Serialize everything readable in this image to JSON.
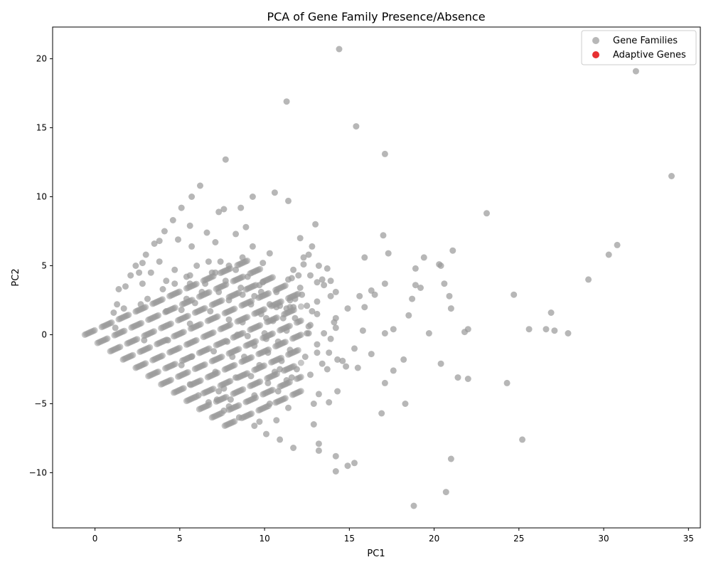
{
  "chart_data": {
    "type": "scatter",
    "title": "PCA of Gene Family Presence/Absence",
    "xlabel": "PC1",
    "ylabel": "PC2",
    "xlim": [
      -2.5,
      35.7
    ],
    "ylim": [
      -14.0,
      22.3
    ],
    "xticks": [
      0,
      5,
      10,
      15,
      20,
      25,
      30,
      35
    ],
    "yticks": [
      -10,
      -5,
      0,
      5,
      10,
      15,
      20
    ],
    "grid": false,
    "legend": {
      "position": "top-right",
      "entries": [
        {
          "label": "Gene Families",
          "color": "#999999"
        },
        {
          "label": "Adaptive Genes",
          "color": "#e41a1c"
        }
      ]
    },
    "series": [
      {
        "name": "Gene Families",
        "color": "#999999",
        "points": [
          [
            14.4,
            20.7
          ],
          [
            31.9,
            19.1
          ],
          [
            11.3,
            16.9
          ],
          [
            15.4,
            15.1
          ],
          [
            17.1,
            13.1
          ],
          [
            7.7,
            12.7
          ],
          [
            34.0,
            11.5
          ],
          [
            6.2,
            10.8
          ],
          [
            10.6,
            10.3
          ],
          [
            5.7,
            10.0
          ],
          [
            9.3,
            10.0
          ],
          [
            11.4,
            9.7
          ],
          [
            5.1,
            9.2
          ],
          [
            7.6,
            9.1
          ],
          [
            8.6,
            9.2
          ],
          [
            7.3,
            8.9
          ],
          [
            23.1,
            8.8
          ],
          [
            4.6,
            8.3
          ],
          [
            13.0,
            8.0
          ],
          [
            5.6,
            7.9
          ],
          [
            8.9,
            7.8
          ],
          [
            4.1,
            7.5
          ],
          [
            6.6,
            7.4
          ],
          [
            8.3,
            7.3
          ],
          [
            17.0,
            7.2
          ],
          [
            12.1,
            7.0
          ],
          [
            3.8,
            6.8
          ],
          [
            4.9,
            6.9
          ],
          [
            7.1,
            6.7
          ],
          [
            30.8,
            6.5
          ],
          [
            3.5,
            6.6
          ],
          [
            21.1,
            6.1
          ],
          [
            5.7,
            6.4
          ],
          [
            9.3,
            6.4
          ],
          [
            12.8,
            6.4
          ],
          [
            10.3,
            5.9
          ],
          [
            17.3,
            5.9
          ],
          [
            30.3,
            5.8
          ],
          [
            3.0,
            5.8
          ],
          [
            12.6,
            5.8
          ],
          [
            8.7,
            5.6
          ],
          [
            15.9,
            5.6
          ],
          [
            19.4,
            5.6
          ],
          [
            12.3,
            5.6
          ],
          [
            7.4,
            5.3
          ],
          [
            3.8,
            5.3
          ],
          [
            2.8,
            5.2
          ],
          [
            6.0,
            5.0
          ],
          [
            6.7,
            5.3
          ],
          [
            9.9,
            5.2
          ],
          [
            13.2,
            5.0
          ],
          [
            20.3,
            5.1
          ],
          [
            20.4,
            5.0
          ],
          [
            12.3,
            5.1
          ],
          [
            7.9,
            5.0
          ],
          [
            2.4,
            5.0
          ],
          [
            11.7,
            4.7
          ],
          [
            18.9,
            4.8
          ],
          [
            13.7,
            4.8
          ],
          [
            8.3,
            4.7
          ],
          [
            3.3,
            4.5
          ],
          [
            4.7,
            4.7
          ],
          [
            2.6,
            4.5
          ],
          [
            6.9,
            4.5
          ],
          [
            7.1,
            4.5
          ],
          [
            12.0,
            4.3
          ],
          [
            12.7,
            4.3
          ],
          [
            2.1,
            4.3
          ],
          [
            5.6,
            4.3
          ],
          [
            5.4,
            4.2
          ],
          [
            9.0,
            4.2
          ],
          [
            11.4,
            4.0
          ],
          [
            11.6,
            4.1
          ],
          [
            13.4,
            4.0
          ],
          [
            29.1,
            4.0
          ],
          [
            13.1,
            3.8
          ],
          [
            13.9,
            3.9
          ],
          [
            4.2,
            3.9
          ],
          [
            7.7,
            3.9
          ],
          [
            4.7,
            3.7
          ],
          [
            6.5,
            3.7
          ],
          [
            9.9,
            3.8
          ],
          [
            18.9,
            3.6
          ],
          [
            20.6,
            3.7
          ],
          [
            13.5,
            3.6
          ],
          [
            17.1,
            3.7
          ],
          [
            9.7,
            3.6
          ],
          [
            2.8,
            3.7
          ],
          [
            5.6,
            3.7
          ],
          [
            19.2,
            3.4
          ],
          [
            4.0,
            3.3
          ],
          [
            8.6,
            3.4
          ],
          [
            12.1,
            3.4
          ],
          [
            1.4,
            3.3
          ],
          [
            1.8,
            3.5
          ],
          [
            10.7,
            3.1
          ],
          [
            14.2,
            3.1
          ],
          [
            16.3,
            3.2
          ],
          [
            6.3,
            3.1
          ],
          [
            9.8,
            3.1
          ],
          [
            24.7,
            2.9
          ],
          [
            16.5,
            2.9
          ],
          [
            15.6,
            2.8
          ],
          [
            13.9,
            2.8
          ],
          [
            20.9,
            2.8
          ],
          [
            12.2,
            2.9
          ],
          [
            9.4,
            2.8
          ],
          [
            8.7,
            2.9
          ],
          [
            7.3,
            3.1
          ],
          [
            5.4,
            2.6
          ],
          [
            18.7,
            2.6
          ],
          [
            11.8,
            2.6
          ],
          [
            3.1,
            2.6
          ],
          [
            11.5,
            2.5
          ],
          [
            7.9,
            2.5
          ],
          [
            5.9,
            2.3
          ],
          [
            9.2,
            2.2
          ],
          [
            13.1,
            2.4
          ],
          [
            1.3,
            2.2
          ],
          [
            2.7,
            2.2
          ],
          [
            10.3,
            2.2
          ],
          [
            12.5,
            2.1
          ],
          [
            11.7,
            2.0
          ],
          [
            15.9,
            2.0
          ],
          [
            10.9,
            2.1
          ],
          [
            14.9,
            1.9
          ],
          [
            21.0,
            1.9
          ],
          [
            11.3,
            1.9
          ],
          [
            11.5,
            2.0
          ],
          [
            10.7,
            2.0
          ],
          [
            5.1,
            1.8
          ],
          [
            1.7,
            1.9
          ],
          [
            4.2,
            1.7
          ],
          [
            6.8,
            1.7
          ],
          [
            26.9,
            1.6
          ],
          [
            12.8,
            1.7
          ],
          [
            13.1,
            1.5
          ],
          [
            9.8,
            1.5
          ],
          [
            1.1,
            1.6
          ],
          [
            18.5,
            1.4
          ],
          [
            14.2,
            1.2
          ],
          [
            11.8,
            1.2
          ],
          [
            10.1,
            1.2
          ],
          [
            11.1,
            1.2
          ],
          [
            10.5,
            1.0
          ],
          [
            7.9,
            1.1
          ],
          [
            14.1,
            0.9
          ],
          [
            8.7,
            0.9
          ],
          [
            12.7,
            0.7
          ],
          [
            12.6,
            0.6
          ],
          [
            5.6,
            0.8
          ],
          [
            1.2,
            0.5
          ],
          [
            14.2,
            0.5
          ],
          [
            17.6,
            0.4
          ],
          [
            22.0,
            0.4
          ],
          [
            25.6,
            0.4
          ],
          [
            26.6,
            0.4
          ],
          [
            27.1,
            0.3
          ],
          [
            21.8,
            0.2
          ],
          [
            27.9,
            0.1
          ],
          [
            15.8,
            0.3
          ],
          [
            11.3,
            0.3
          ],
          [
            17.1,
            0.1
          ],
          [
            19.7,
            0.1
          ],
          [
            12.6,
            0.1
          ],
          [
            13.5,
            0.1
          ],
          [
            10.0,
            0.1
          ],
          [
            12.5,
            0.1
          ],
          [
            13.9,
            -0.3
          ],
          [
            9.0,
            -0.1
          ],
          [
            8.4,
            0.0
          ],
          [
            7.8,
            -0.5
          ],
          [
            4.3,
            -0.4
          ],
          [
            10.1,
            -0.3
          ],
          [
            10.8,
            -0.5
          ],
          [
            2.9,
            -0.4
          ],
          [
            13.1,
            -0.7
          ],
          [
            15.3,
            -1.0
          ],
          [
            11.5,
            -1.1
          ],
          [
            9.4,
            -0.8
          ],
          [
            7.0,
            -1.2
          ],
          [
            13.8,
            -1.3
          ],
          [
            16.3,
            -1.4
          ],
          [
            13.1,
            -1.3
          ],
          [
            10.2,
            -1.3
          ],
          [
            5.7,
            -1.6
          ],
          [
            8.1,
            -1.6
          ],
          [
            8.8,
            -1.6
          ],
          [
            12.4,
            -1.6
          ],
          [
            14.3,
            -1.8
          ],
          [
            14.6,
            -1.9
          ],
          [
            18.2,
            -1.8
          ],
          [
            20.4,
            -2.1
          ],
          [
            13.4,
            -2.1
          ],
          [
            14.8,
            -2.3
          ],
          [
            15.5,
            -2.4
          ],
          [
            11.0,
            -1.9
          ],
          [
            5.1,
            -2.2
          ],
          [
            9.7,
            -2.2
          ],
          [
            10.9,
            -2.5
          ],
          [
            11.9,
            -2.5
          ],
          [
            13.7,
            -2.5
          ],
          [
            10.6,
            -2.7
          ],
          [
            17.6,
            -2.6
          ],
          [
            12.7,
            -2.9
          ],
          [
            9.2,
            -3.0
          ],
          [
            11.3,
            -3.3
          ],
          [
            11.6,
            -3.1
          ],
          [
            8.3,
            -3.1
          ],
          [
            7.1,
            -2.7
          ],
          [
            21.4,
            -3.1
          ],
          [
            22.0,
            -3.2
          ],
          [
            17.1,
            -3.5
          ],
          [
            24.3,
            -3.5
          ],
          [
            10.2,
            -3.5
          ],
          [
            5.6,
            -3.6
          ],
          [
            7.6,
            -3.9
          ],
          [
            7.3,
            -4.1
          ],
          [
            10.8,
            -4.1
          ],
          [
            14.3,
            -4.1
          ],
          [
            13.2,
            -4.3
          ],
          [
            9.4,
            -4.4
          ],
          [
            6.1,
            -4.4
          ],
          [
            8.0,
            -4.7
          ],
          [
            7.2,
            -4.7
          ],
          [
            12.9,
            -5.0
          ],
          [
            13.8,
            -4.9
          ],
          [
            18.3,
            -5.0
          ],
          [
            10.3,
            -5.0
          ],
          [
            6.7,
            -4.9
          ],
          [
            7.9,
            -5.2
          ],
          [
            11.4,
            -5.3
          ],
          [
            7.6,
            -5.5
          ],
          [
            16.9,
            -5.7
          ],
          [
            8.5,
            -6.0
          ],
          [
            10.7,
            -6.2
          ],
          [
            9.7,
            -6.3
          ],
          [
            12.9,
            -6.5
          ],
          [
            9.4,
            -6.6
          ],
          [
            10.1,
            -7.2
          ],
          [
            25.2,
            -7.6
          ],
          [
            10.9,
            -7.6
          ],
          [
            13.2,
            -7.9
          ],
          [
            11.7,
            -8.2
          ],
          [
            13.2,
            -8.4
          ],
          [
            14.2,
            -8.8
          ],
          [
            21.0,
            -9.0
          ],
          [
            15.3,
            -9.3
          ],
          [
            14.9,
            -9.5
          ],
          [
            14.2,
            -9.9
          ],
          [
            20.7,
            -11.4
          ],
          [
            18.8,
            -12.4
          ]
        ]
      },
      {
        "name": "Adaptive Genes",
        "color": "#e41a1c",
        "points": []
      }
    ]
  }
}
